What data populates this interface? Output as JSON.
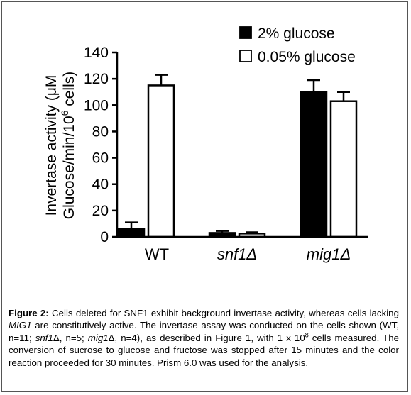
{
  "chart_data": {
    "type": "bar",
    "title": "",
    "xlabel": "",
    "ylabel_line1": "Invertase activity (μM",
    "ylabel_line2_pre": "Glucose/min/10",
    "ylabel_line2_sup": "6",
    "ylabel_line2_post": " cells)",
    "ylim": [
      0,
      140
    ],
    "yticks": [
      0,
      20,
      40,
      60,
      80,
      100,
      120,
      140
    ],
    "categories": [
      "WT",
      "snf1Δ",
      "mig1Δ"
    ],
    "category_italic": [
      false,
      true,
      true
    ],
    "series": [
      {
        "name": "2% glucose",
        "color": "#000000",
        "fill": "solid",
        "values": [
          6,
          3,
          110
        ],
        "errors": [
          5,
          1.5,
          9
        ]
      },
      {
        "name": "0.05% glucose",
        "color": "#ffffff",
        "fill": "open",
        "values": [
          115,
          2.5,
          103
        ],
        "errors": [
          8,
          1,
          7
        ]
      }
    ],
    "legend_position": "top-right",
    "grid": false
  },
  "caption": {
    "label": "Figure 2:",
    "p1": " Cells deleted for SNF1 exhibit background invertase activity, whereas cells lacking ",
    "i1": "MIG1",
    "p2": " are constitutively active. The invertase assay was conducted on the cells shown (WT, n=11; ",
    "i2": "snf1",
    "p3": "Δ, n=5; ",
    "i3": "mig1",
    "p4": "Δ, n=4), as described in Figure 1, with 1 x 10",
    "sup": "8",
    "p5": " cells measured. The conversion of sucrose to glucose and fructose was stopped after 15 minutes and the color reaction proceeded for 30 minutes. Prism 6.0 was used for the analysis."
  }
}
